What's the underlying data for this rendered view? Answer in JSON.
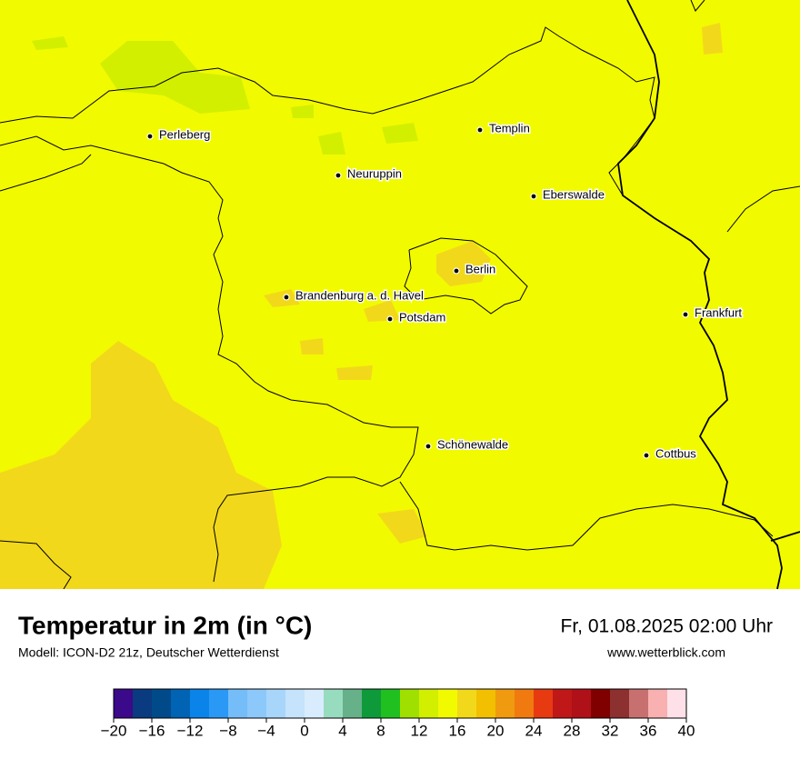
{
  "header": {
    "title": "Temperatur in 2m (in °C)",
    "subtitle": "Modell: ICON-D2 21z, Deutscher Wetterdienst",
    "datetime": "Fr, 01.08.2025 02:00 Uhr",
    "website": "www.wetterblick.com"
  },
  "map": {
    "cities": [
      "Perleberg",
      "Templin",
      "Neuruppin",
      "Eberswalde",
      "Berlin",
      "Brandenburg a. d. Havel",
      "Potsdam",
      "Frankfurt",
      "Schönewalde",
      "Cottbus"
    ]
  },
  "legend": {
    "lim": [
      -20,
      40
    ],
    "colors": [
      "#3a0a8a",
      "#0a3a80",
      "#004a8a",
      "#0063b4",
      "#0a84e8",
      "#2a98f5",
      "#74bdf9",
      "#8cc8fa",
      "#a8d6fb",
      "#c6e3fc",
      "#d9ecfd",
      "#98dcc0",
      "#66b08a",
      "#0e9a3a",
      "#20c020",
      "#a0e000",
      "#d2ef00",
      "#f2fa00",
      "#f2d81a",
      "#f2c000",
      "#f09a10",
      "#f07a10",
      "#e83a10",
      "#c01818",
      "#b01018",
      "#800000",
      "#8c3030",
      "#c87070",
      "#f8b0b0",
      "#fde0e8"
    ],
    "ticks": [
      {
        "value": -20,
        "label": "−20"
      },
      {
        "value": -16,
        "label": "−16"
      },
      {
        "value": -12,
        "label": "−12"
      },
      {
        "value": -8,
        "label": "−8"
      },
      {
        "value": -4,
        "label": "−4"
      },
      0,
      4,
      8,
      12,
      16,
      20,
      24,
      28,
      32,
      36,
      40
    ]
  }
}
